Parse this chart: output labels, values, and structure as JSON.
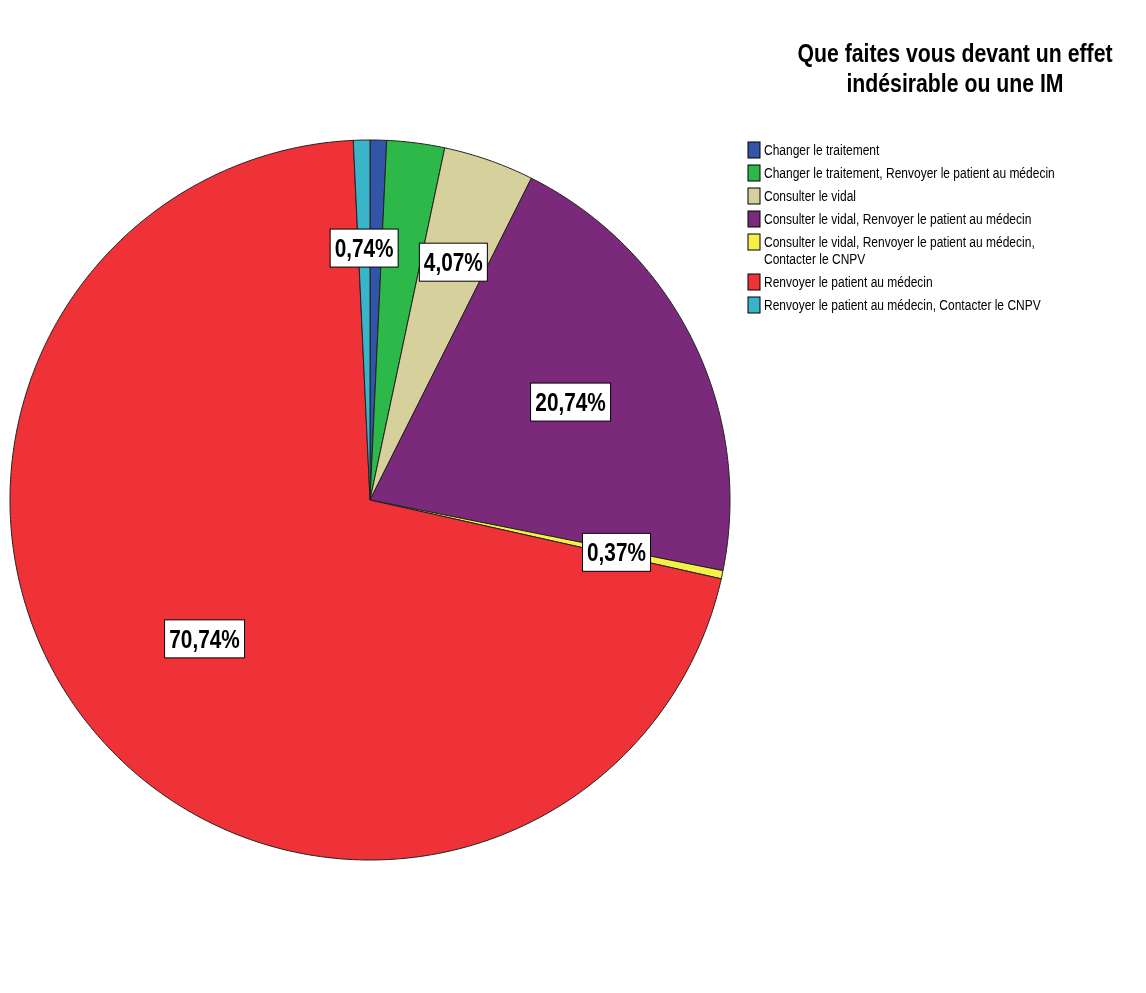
{
  "chart_data": {
    "type": "pie",
    "legend_title": "Que faites vous devant un effet indésirable ou une IM",
    "legend": "right",
    "categories": [
      "Changer le traitement",
      "Changer le traitement, Renvoyer le patient au médecin",
      "Consulter le vidal",
      "Consulter le vidal, Renvoyer le patient au médecin",
      "Consulter le vidal, Renvoyer le patient au médecin, Contacter le CNPV",
      "Renvoyer le patient au médecin",
      "Renvoyer le patient au médecin, Contacter le CNPV"
    ],
    "values": [
      0.74,
      2.59,
      4.07,
      20.74,
      0.37,
      70.74,
      0.74
    ],
    "value_labels": [
      null,
      null,
      "4,07%",
      "20,74%",
      "0,37%",
      "70,74%",
      "0,74%"
    ],
    "colors": [
      "#3355a8",
      "#2db84a",
      "#d6d09c",
      "#7b2a7b",
      "#f5ef4a",
      "#ee3238",
      "#3ab4c8"
    ]
  }
}
